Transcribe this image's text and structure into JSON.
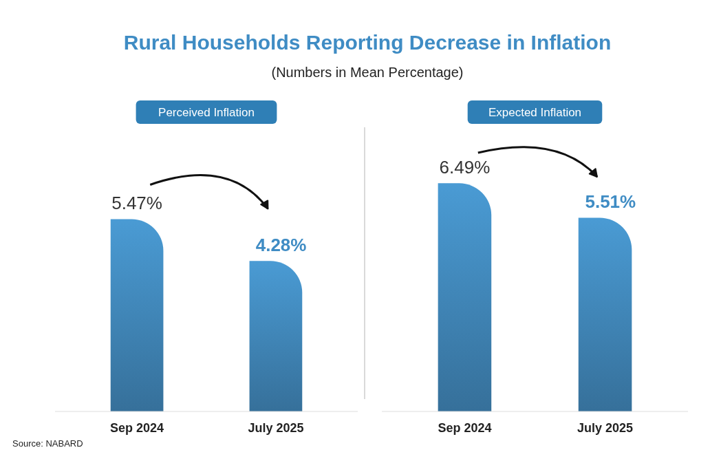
{
  "chart_data": [
    {
      "type": "other",
      "title": "Rural Households Reporting Decrease in Inflation",
      "subtitle": "(Numbers in Mean Percentage)",
      "annotations": [
        "Source: NABARD"
      ]
    },
    {
      "type": "bar",
      "title": "Perceived Inflation",
      "categories": [
        "Sep 2024",
        "July 2025"
      ],
      "values": [
        5.47,
        4.28
      ],
      "value_labels": [
        "5.47%",
        "4.28%"
      ],
      "color": "#4a9bd4"
    },
    {
      "type": "bar",
      "title": "Expected Inflation",
      "categories": [
        "Sep 2024",
        "July 2025"
      ],
      "values": [
        6.49,
        5.51
      ],
      "value_labels": [
        "6.49%",
        "5.51%"
      ],
      "color": "#4a9bd4"
    }
  ]
}
